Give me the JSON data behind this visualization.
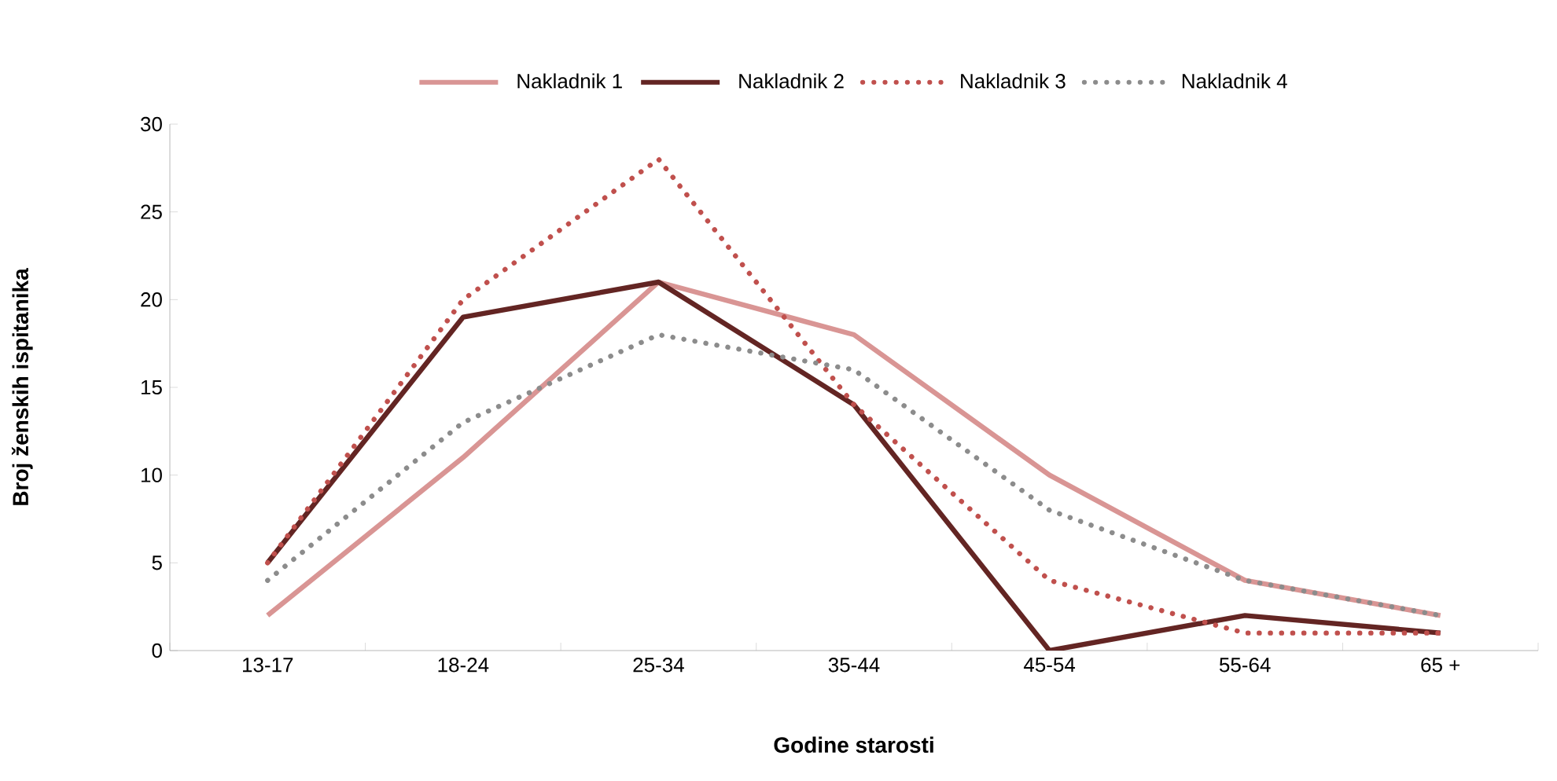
{
  "chart_data": {
    "type": "line",
    "xlabel": "Godine starosti",
    "ylabel": "Broj ženskih ispitanika",
    "categories": [
      "13-17",
      "18-24",
      "25-34",
      "35-44",
      "45-54",
      "55-64",
      "65 +"
    ],
    "series": [
      {
        "name": "Nakladnik 1",
        "color": "#d99594",
        "line_style": "solid",
        "values": [
          2,
          11,
          21,
          18,
          10,
          4,
          2
        ]
      },
      {
        "name": "Nakladnik 2",
        "color": "#632523",
        "line_style": "solid",
        "values": [
          5,
          19,
          21,
          14,
          0,
          2,
          1
        ]
      },
      {
        "name": "Nakladnik 3",
        "color": "#c0504d",
        "line_style": "dotted",
        "values": [
          5,
          20,
          28,
          14,
          4,
          1,
          1
        ]
      },
      {
        "name": "Nakladnik 4",
        "color": "#8c8c8c",
        "line_style": "dotted",
        "values": [
          4,
          13,
          18,
          16,
          8,
          4,
          2
        ]
      }
    ],
    "ylim": [
      0,
      30
    ],
    "yticks": [
      0,
      5,
      10,
      15,
      20,
      25,
      30
    ],
    "grid": false,
    "legend": "top",
    "marker": "none"
  }
}
